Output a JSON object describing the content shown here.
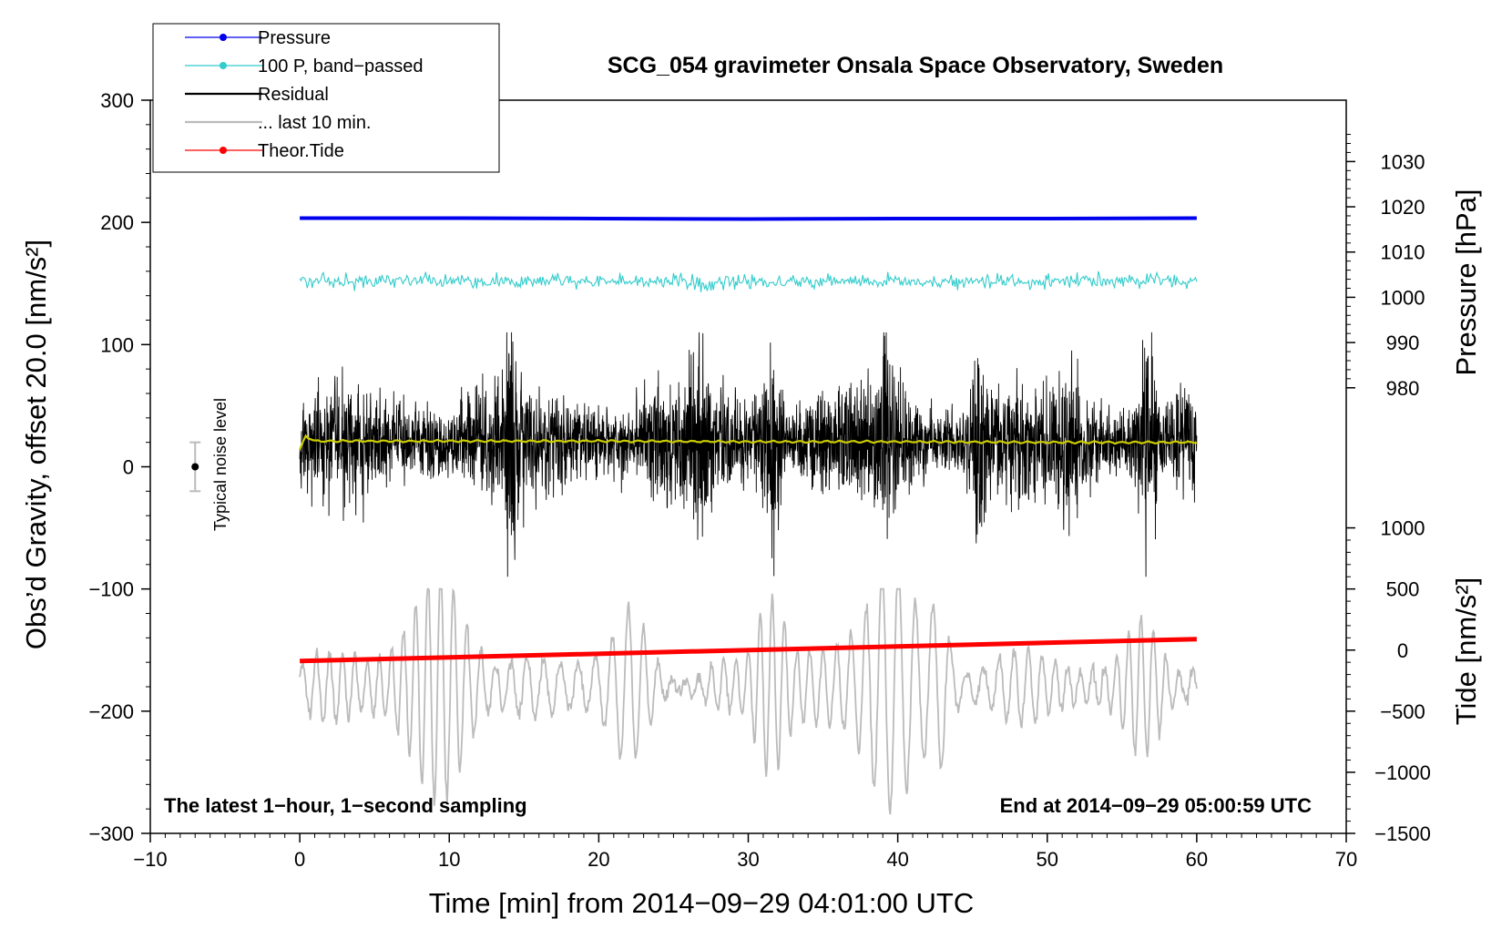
{
  "chart_data": {
    "type": "line",
    "title": "SCG_054 gravimeter Onsala Space Observatory, Sweden",
    "xlabel": "Time [min] from 2014−09−29 04:01:00 UTC",
    "ylabel_left": "Obs’d Gravity, offset 20.0 [nm/s²]",
    "ylabel_right_pressure": "Pressure [hPa]",
    "ylabel_right_tide": "Tide [nm/s²]",
    "xlim": [
      -10,
      70
    ],
    "ylim": [
      -300,
      300
    ],
    "x_ticks": [
      -10,
      0,
      10,
      20,
      30,
      40,
      50,
      60,
      70
    ],
    "x_tick_labels": [
      "−10",
      "0",
      "10",
      "20",
      "30",
      "40",
      "50",
      "60",
      "70"
    ],
    "y_ticks": [
      -300,
      -200,
      -100,
      0,
      100,
      200,
      300
    ],
    "y_tick_labels": [
      "−300",
      "−200",
      "−100",
      "0",
      "100",
      "200",
      "300"
    ],
    "pressure_axis": {
      "ticks": [
        980,
        990,
        1000,
        1010,
        1020,
        1030
      ],
      "tick_labels": [
        "980",
        "990",
        "1000",
        "1010",
        "1020",
        "1030"
      ],
      "ref_value": 1000,
      "ref_gravity": 138.7,
      "gravity_per_unit": 3.703
    },
    "tide_axis": {
      "ticks": [
        -1500,
        -1000,
        -500,
        0,
        500,
        1000
      ],
      "tick_labels": [
        "−1500",
        "−1000",
        "−500",
        "0",
        "500",
        "1000"
      ],
      "ref_value": 0,
      "ref_gravity": -150,
      "gravity_per_unit": 0.1
    },
    "legend": {
      "position": "top-left",
      "items": [
        {
          "label": "Pressure",
          "color": "#0000ee",
          "marker": true
        },
        {
          "label": "100 P, band−passed",
          "color": "#33cccc",
          "marker": true
        },
        {
          "label": "Residual",
          "color": "#000000",
          "marker": false
        },
        {
          "label": "... last 10 min.",
          "color": "#bbbbbb",
          "marker": false
        },
        {
          "label": "Theor.Tide",
          "color": "#ff0000",
          "marker": true
        }
      ]
    },
    "series": [
      {
        "name": "Pressure",
        "unit": "hPa",
        "color": "#0000ee",
        "x": [
          0,
          10,
          20,
          30,
          40,
          50,
          60
        ],
        "y": [
          1017.5,
          1017.5,
          1017.4,
          1017.3,
          1017.4,
          1017.4,
          1017.5
        ]
      },
      {
        "name": "100 P, band−passed",
        "color": "#33cccc",
        "baseline": 152,
        "amplitude": 4,
        "x_range": [
          0,
          60
        ]
      },
      {
        "name": "Residual",
        "color": "#000000",
        "baseline": 20,
        "typical_amplitude": 35,
        "peak_max": 110,
        "peak_min": -90,
        "x_range": [
          0,
          60
        ]
      },
      {
        "name": "Residual mean",
        "color": "#cccc00",
        "x": [
          0,
          0.4,
          1,
          10,
          20,
          30,
          40,
          50,
          60
        ],
        "y": [
          14,
          25,
          21,
          21,
          21,
          20.5,
          20.5,
          20,
          20
        ]
      },
      {
        "name": "... last 10 min.",
        "color": "#bbbbbb",
        "baseline": -180,
        "typical_amplitude": 25,
        "peak_max": -100,
        "peak_min": -295,
        "x_range": [
          0,
          60
        ]
      },
      {
        "name": "Theor.Tide",
        "unit": "nm/s²",
        "color": "#ff0000",
        "x": [
          0,
          60
        ],
        "y": [
          -90,
          90
        ]
      }
    ],
    "noise_level": {
      "label": "Typical noise level",
      "x": -7,
      "y": 0,
      "low": -20,
      "high": 20
    },
    "annotations": {
      "left": "The latest 1−hour, 1−second sampling",
      "right": "End at 2014−09−29 05:00:59 UTC"
    }
  }
}
